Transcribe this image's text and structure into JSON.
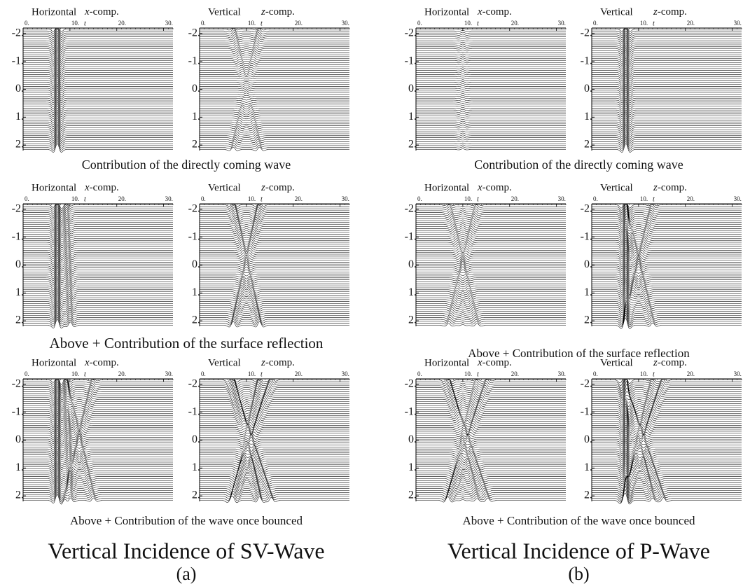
{
  "figure": {
    "xlim": [
      0,
      32
    ],
    "xticks": [
      {
        "value": 0,
        "label": "0."
      },
      {
        "value": 10,
        "label": "10."
      },
      {
        "value": 20,
        "label": "20."
      },
      {
        "value": 30,
        "label": "30."
      }
    ],
    "t_label": "t",
    "ylim": [
      -2.2,
      2.2
    ],
    "yticks": [
      {
        "value": -2,
        "label": "-2."
      },
      {
        "value": -1,
        "label": "-1."
      },
      {
        "value": 0,
        "label": "0."
      },
      {
        "value": 1,
        "label": "1."
      },
      {
        "value": 2,
        "label": "2."
      }
    ],
    "columns": [
      {
        "title": "Vertical Incidence of SV-Wave",
        "label": "(a)",
        "rows": [
          {
            "caption": "Contribution of the directly coming wave",
            "panels": [
              {
                "component": "Horizontal",
                "var": "x",
                "suffix": "-comp."
              },
              {
                "component": "Vertical",
                "var": "z",
                "suffix": "-comp."
              }
            ]
          },
          {
            "caption": "Above + Contribution of the surface reflection",
            "panels": [
              {
                "component": "Horizontal",
                "var": "x",
                "suffix": "-comp."
              },
              {
                "component": "Vertical",
                "var": "z",
                "suffix": "-comp."
              }
            ]
          },
          {
            "caption": "Above + Contribution of the wave once bounced",
            "panels": [
              {
                "component": "Horizontal",
                "var": "x",
                "suffix": "-comp."
              },
              {
                "component": "Vertical",
                "var": "z",
                "suffix": "-comp."
              }
            ]
          }
        ]
      },
      {
        "title": "Vertical Incidence of P-Wave",
        "label": "(b)",
        "rows": [
          {
            "caption": "Contribution of the directly coming wave",
            "panels": [
              {
                "component": "Horizontal",
                "var": "x",
                "suffix": "-comp."
              },
              {
                "component": "Vertical",
                "var": "z",
                "suffix": "-comp."
              }
            ]
          },
          {
            "caption": "Above + Contribution of the surface reflection",
            "panels": [
              {
                "component": "Horizontal",
                "var": "x",
                "suffix": "-comp."
              },
              {
                "component": "Vertical",
                "var": "z",
                "suffix": "-comp."
              }
            ]
          },
          {
            "caption": "Above + Contribution of the wave once bounced",
            "panels": [
              {
                "component": "Horizontal",
                "var": "x",
                "suffix": "-comp."
              },
              {
                "component": "Vertical",
                "var": "z",
                "suffix": "-comp."
              }
            ]
          }
        ]
      }
    ]
  }
}
